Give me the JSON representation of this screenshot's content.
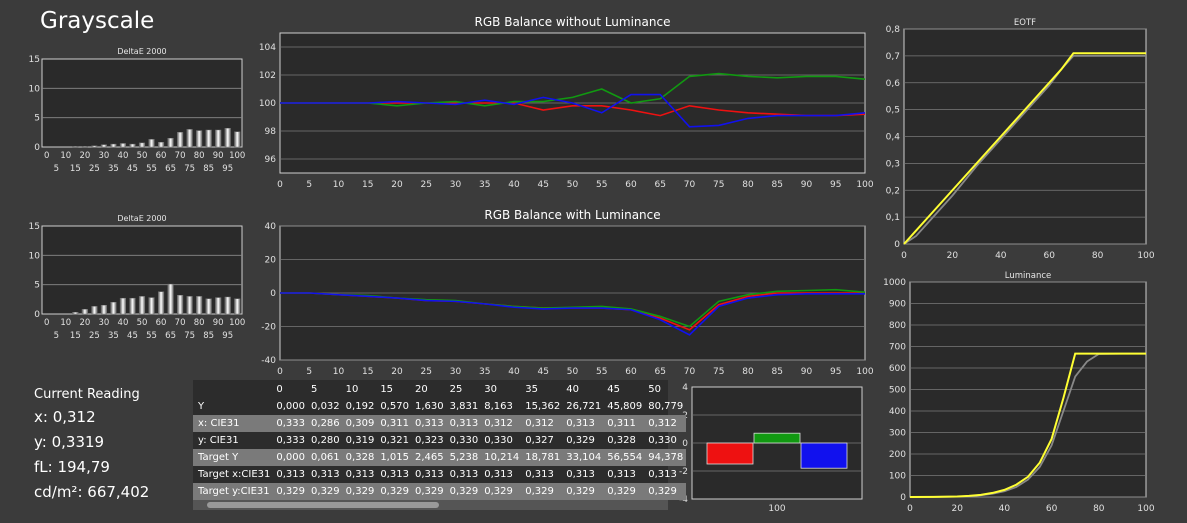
{
  "page": {
    "title": "Grayscale"
  },
  "reading": {
    "heading": "Current Reading",
    "x": "x: 0,312",
    "y": "y: 0,3319",
    "fl": "fL: 194,79",
    "cd": "cd/m²: 667,402"
  },
  "colors": {
    "red": "#ee1111",
    "green": "#119911",
    "blue": "#1111ee",
    "yellow": "#ffff33",
    "gray": "#888888"
  },
  "table": {
    "columns": [
      "0",
      "5",
      "10",
      "15",
      "20",
      "25",
      "30",
      "35",
      "40",
      "45",
      "50"
    ],
    "rows": [
      {
        "label": "Y",
        "values": [
          "0,000",
          "0,032",
          "0,192",
          "0,570",
          "1,630",
          "3,831",
          "8,163",
          "15,362",
          "26,721",
          "45,809",
          "80,779"
        ]
      },
      {
        "label": "x: CIE31",
        "values": [
          "0,333",
          "0,286",
          "0,309",
          "0,311",
          "0,313",
          "0,313",
          "0,312",
          "0,312",
          "0,313",
          "0,311",
          "0,312"
        ]
      },
      {
        "label": "y: CIE31",
        "values": [
          "0,333",
          "0,280",
          "0,319",
          "0,321",
          "0,323",
          "0,330",
          "0,330",
          "0,327",
          "0,329",
          "0,328",
          "0,330"
        ]
      },
      {
        "label": "Target Y",
        "values": [
          "0,000",
          "0,061",
          "0,328",
          "1,015",
          "2,465",
          "5,238",
          "10,214",
          "18,781",
          "33,104",
          "56,554",
          "94,378"
        ]
      },
      {
        "label": "Target x:CIE31",
        "values": [
          "0,313",
          "0,313",
          "0,313",
          "0,313",
          "0,313",
          "0,313",
          "0,313",
          "0,313",
          "0,313",
          "0,313",
          "0,313"
        ]
      },
      {
        "label": "Target y:CIE31",
        "values": [
          "0,329",
          "0,329",
          "0,329",
          "0,329",
          "0,329",
          "0,329",
          "0,329",
          "0,329",
          "0,329",
          "0,329",
          "0,329"
        ]
      }
    ]
  },
  "chart_data": [
    {
      "id": "deltae1",
      "type": "bar",
      "title": "DeltaE 2000",
      "categories": [
        "0",
        "5",
        "10",
        "15",
        "20",
        "25",
        "30",
        "35",
        "40",
        "45",
        "50",
        "55",
        "60",
        "65",
        "70",
        "75",
        "80",
        "85",
        "90",
        "95",
        "100"
      ],
      "values": [
        0,
        0,
        0,
        0.1,
        0.1,
        0.2,
        0.4,
        0.5,
        0.6,
        0.5,
        0.7,
        1.3,
        0.8,
        1.5,
        2.5,
        3.0,
        2.8,
        2.9,
        2.9,
        3.2,
        2.6
      ],
      "ylim": [
        0,
        15
      ],
      "yticks": [
        0,
        5,
        10,
        15
      ],
      "xticks_top": [
        "0",
        "10",
        "20",
        "30",
        "40",
        "50",
        "60",
        "70",
        "80",
        "90",
        "100"
      ],
      "xticks_bottom": [
        "5",
        "15",
        "25",
        "35",
        "45",
        "55",
        "65",
        "75",
        "85",
        "95"
      ]
    },
    {
      "id": "deltae2",
      "type": "bar",
      "title": "DeltaE 2000",
      "categories": [
        "0",
        "5",
        "10",
        "15",
        "20",
        "25",
        "30",
        "35",
        "40",
        "45",
        "50",
        "55",
        "60",
        "65",
        "70",
        "75",
        "80",
        "85",
        "90",
        "95",
        "100"
      ],
      "values": [
        0,
        0,
        0,
        0.3,
        0.8,
        1.3,
        1.5,
        2.0,
        2.7,
        2.7,
        3.0,
        2.8,
        3.8,
        5.1,
        3.2,
        3.0,
        3.0,
        2.6,
        2.8,
        2.9,
        2.6
      ],
      "ylim": [
        0,
        15
      ],
      "yticks": [
        0,
        5,
        10,
        15
      ],
      "xticks_top": [
        "0",
        "10",
        "20",
        "30",
        "40",
        "50",
        "60",
        "70",
        "80",
        "90",
        "100"
      ],
      "xticks_bottom": [
        "5",
        "15",
        "25",
        "35",
        "45",
        "55",
        "65",
        "75",
        "85",
        "95"
      ]
    },
    {
      "id": "rgb1",
      "type": "line",
      "title": "RGB Balance without Luminance",
      "x": [
        0,
        5,
        10,
        15,
        20,
        25,
        30,
        35,
        40,
        45,
        50,
        55,
        60,
        65,
        70,
        75,
        80,
        85,
        90,
        95,
        100
      ],
      "series": [
        {
          "color": "red",
          "values": [
            100,
            100,
            100,
            100,
            100,
            100,
            100,
            100,
            100,
            99.5,
            99.8,
            99.8,
            99.5,
            99.1,
            99.8,
            99.5,
            99.3,
            99.2,
            99.1,
            99.1,
            99.2
          ]
        },
        {
          "color": "green",
          "values": [
            100,
            100,
            100,
            100,
            99.8,
            100,
            100.1,
            99.8,
            100.1,
            100.1,
            100.4,
            101,
            100,
            100.3,
            101.9,
            102.1,
            101.9,
            101.8,
            101.9,
            101.9,
            101.7
          ]
        },
        {
          "color": "blue",
          "values": [
            100,
            100,
            100,
            100,
            100.1,
            100,
            99.9,
            100.2,
            99.9,
            100.4,
            100,
            99.3,
            100.6,
            100.6,
            98.3,
            98.4,
            98.9,
            99.1,
            99.1,
            99.1,
            99.3
          ]
        }
      ],
      "xlim": [
        0,
        100
      ],
      "ylim": [
        95,
        105
      ],
      "yticks": [
        96,
        98,
        100,
        102,
        104
      ],
      "xticks": [
        0,
        5,
        10,
        15,
        20,
        25,
        30,
        35,
        40,
        45,
        50,
        55,
        60,
        65,
        70,
        75,
        80,
        85,
        90,
        95,
        100
      ]
    },
    {
      "id": "rgb2",
      "type": "line",
      "title": "RGB Balance with Luminance",
      "x": [
        0,
        5,
        10,
        15,
        20,
        25,
        30,
        35,
        40,
        45,
        50,
        55,
        60,
        65,
        70,
        75,
        80,
        85,
        90,
        95,
        100
      ],
      "series": [
        {
          "color": "red",
          "values": [
            0,
            0,
            -1,
            -2,
            -3,
            -4.5,
            -5,
            -6.5,
            -8,
            -9,
            -9,
            -9,
            -10,
            -15,
            -22,
            -7,
            -2,
            0,
            0,
            0,
            0
          ]
        },
        {
          "color": "green",
          "values": [
            0,
            0,
            -1,
            -1.5,
            -3,
            -4,
            -4.5,
            -6.5,
            -8,
            -9,
            -8.5,
            -8,
            -9.5,
            -14,
            -20,
            -5,
            -1,
            1,
            1.5,
            2,
            0.5
          ]
        },
        {
          "color": "blue",
          "values": [
            0,
            0,
            -1,
            -2,
            -3,
            -4.5,
            -5,
            -6.5,
            -8.5,
            -9.5,
            -9,
            -9,
            -10,
            -16,
            -25,
            -8,
            -3,
            -1,
            -0.5,
            -0.5,
            -0.5
          ]
        }
      ],
      "xlim": [
        0,
        100
      ],
      "ylim": [
        -40,
        40
      ],
      "yticks": [
        -40,
        -20,
        0,
        20,
        40
      ],
      "xticks": [
        0,
        5,
        10,
        15,
        20,
        25,
        30,
        35,
        40,
        45,
        50,
        55,
        60,
        65,
        70,
        75,
        80,
        85,
        90,
        95,
        100
      ]
    },
    {
      "id": "bars3",
      "type": "bar",
      "categories": [
        "100"
      ],
      "series": [
        {
          "color": "red",
          "values": [
            -1.5
          ]
        },
        {
          "color": "green",
          "values": [
            0.7
          ]
        },
        {
          "color": "blue",
          "values": [
            -1.8
          ]
        }
      ],
      "ylim": [
        -4,
        4
      ],
      "yticks": [
        -4,
        -2,
        0,
        2,
        4
      ]
    },
    {
      "id": "eotf",
      "type": "line",
      "title": "EOTF",
      "series": [
        {
          "color": "yellow",
          "x": [
            0,
            5,
            10,
            20,
            30,
            40,
            50,
            60,
            65,
            70,
            75,
            80,
            90,
            100
          ],
          "y": [
            0,
            0.05,
            0.1,
            0.2,
            0.3,
            0.4,
            0.5,
            0.6,
            0.65,
            0.71,
            0.71,
            0.71,
            0.71,
            0.71
          ]
        },
        {
          "color": "gray",
          "x": [
            0,
            5,
            10,
            20,
            30,
            40,
            50,
            60,
            65,
            70,
            75,
            80,
            90,
            100
          ],
          "y": [
            0,
            0.03,
            0.08,
            0.18,
            0.29,
            0.39,
            0.49,
            0.59,
            0.65,
            0.7,
            0.7,
            0.7,
            0.7,
            0.7
          ]
        }
      ],
      "xlim": [
        0,
        100
      ],
      "ylim": [
        0,
        0.8
      ],
      "yticks": [
        0,
        0.1,
        0.2,
        0.3,
        0.4,
        0.5,
        0.6,
        0.7,
        0.8
      ],
      "ytick_labels": [
        "0",
        "0,1",
        "0,2",
        "0,3",
        "0,4",
        "0,5",
        "0,6",
        "0,7",
        "0,8"
      ],
      "xticks": [
        0,
        20,
        40,
        60,
        80,
        100
      ]
    },
    {
      "id": "lum",
      "type": "line",
      "title": "Luminance",
      "series": [
        {
          "color": "yellow",
          "x": [
            0,
            10,
            20,
            25,
            30,
            35,
            40,
            45,
            50,
            55,
            60,
            65,
            70,
            75,
            80,
            90,
            100
          ],
          "y": [
            0,
            0.3,
            2.5,
            5,
            10,
            19,
            33,
            57,
            94,
            160,
            270,
            460,
            667,
            667,
            667,
            667,
            667
          ]
        },
        {
          "color": "gray",
          "x": [
            0,
            10,
            20,
            25,
            30,
            35,
            40,
            45,
            50,
            55,
            60,
            65,
            70,
            75,
            80,
            90,
            100
          ],
          "y": [
            0,
            0.2,
            1.6,
            3.8,
            8.2,
            15,
            27,
            46,
            81,
            140,
            240,
            400,
            560,
            630,
            665,
            667,
            667
          ]
        }
      ],
      "xlim": [
        0,
        100
      ],
      "ylim": [
        0,
        1000
      ],
      "yticks": [
        0,
        100,
        200,
        300,
        400,
        500,
        600,
        700,
        800,
        900,
        1000
      ],
      "xticks": [
        0,
        20,
        40,
        60,
        80,
        100
      ]
    }
  ]
}
